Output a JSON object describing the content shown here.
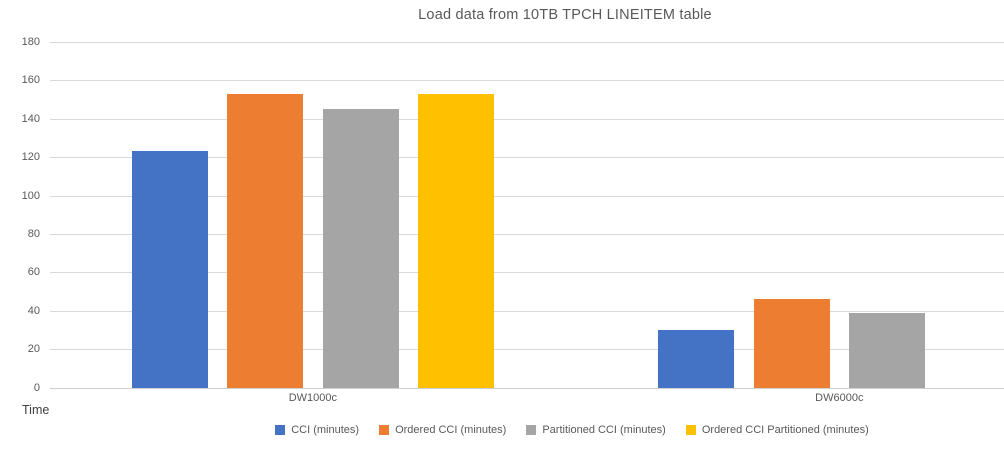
{
  "chart_data": {
    "type": "bar",
    "title": "Load data from 10TB TPCH LINEITEM table",
    "axis_title": "Time",
    "categories": [
      "DW1000c",
      "DW6000c"
    ],
    "series": [
      {
        "name": "CCI (minutes)",
        "color": "#4472C4",
        "values": [
          123,
          30
        ]
      },
      {
        "name": "Ordered CCI (minutes)",
        "color": "#ED7D31",
        "values": [
          153,
          46
        ]
      },
      {
        "name": "Partitioned CCI (minutes)",
        "color": "#A5A5A5",
        "values": [
          145,
          39
        ]
      },
      {
        "name": "Ordered CCI Partitioned (minutes)",
        "color": "#FFC000",
        "values": [
          153,
          0
        ]
      }
    ],
    "ylim": [
      0,
      180
    ],
    "ytick_step": 20,
    "yticks": [
      0,
      20,
      40,
      60,
      80,
      100,
      120,
      140,
      160,
      180
    ],
    "grid": true,
    "legend_position": "bottom"
  }
}
